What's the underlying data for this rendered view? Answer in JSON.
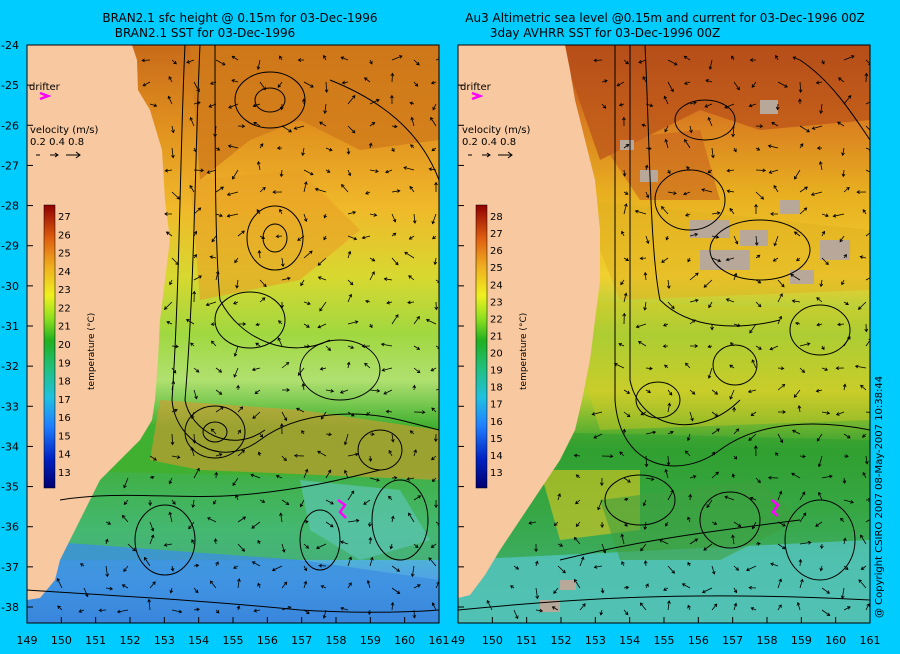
{
  "colors": {
    "background": "#00ccff",
    "land": "#f8c8a0",
    "contour": "#000000",
    "drifter": "#ff00ff",
    "cloud": "#b8a89a"
  },
  "left_panel": {
    "title_line1": "BRAN2.1 sfc height @ 0.15m for 03-Dec-1996",
    "title_line2": "BRAN2.1 SST for 03-Dec-1996",
    "drifter_label": "drifter",
    "velocity_label": "velocity (m/s)",
    "velocity_scale": "0.2 0.4 0.8",
    "colorbar_label": "temperature (°C)",
    "colorbar_ticks": [
      "27",
      "26",
      "25",
      "24",
      "23",
      "22",
      "21",
      "20",
      "19",
      "18",
      "17",
      "16",
      "15",
      "14",
      "13"
    ]
  },
  "right_panel": {
    "title_line1": "Au3 Altimetric sea level  @0.15m and current for 03-Dec-1996 00Z",
    "title_line2": "3day AVHRR SST for 03-Dec-1996 00Z",
    "drifter_label": "drifter",
    "velocity_label": "velocity (m/s)",
    "velocity_scale": "0.2 0.4 0.8",
    "colorbar_label": "temperature (°C)",
    "colorbar_ticks": [
      "28",
      "27",
      "26",
      "25",
      "24",
      "23",
      "22",
      "21",
      "20",
      "19",
      "18",
      "17",
      "16",
      "15",
      "14",
      "13"
    ]
  },
  "axes": {
    "lat_ticks": [
      "-24",
      "-25",
      "-26",
      "-27",
      "-28",
      "-29",
      "-30",
      "-31",
      "-32",
      "-33",
      "-34",
      "-35",
      "-36",
      "-37",
      "-38"
    ],
    "lon_ticks_left": [
      "149",
      "150",
      "151",
      "152",
      "153",
      "154",
      "155",
      "156",
      "157",
      "158",
      "159",
      "160",
      "161"
    ],
    "lon_ticks_right": [
      "49",
      "150",
      "151",
      "152",
      "153",
      "154",
      "155",
      "156",
      "157",
      "158",
      "159",
      "160",
      "161"
    ]
  },
  "copyright": "@ Copyright CSIRO 2007  08-May-2007 10:38:44"
}
